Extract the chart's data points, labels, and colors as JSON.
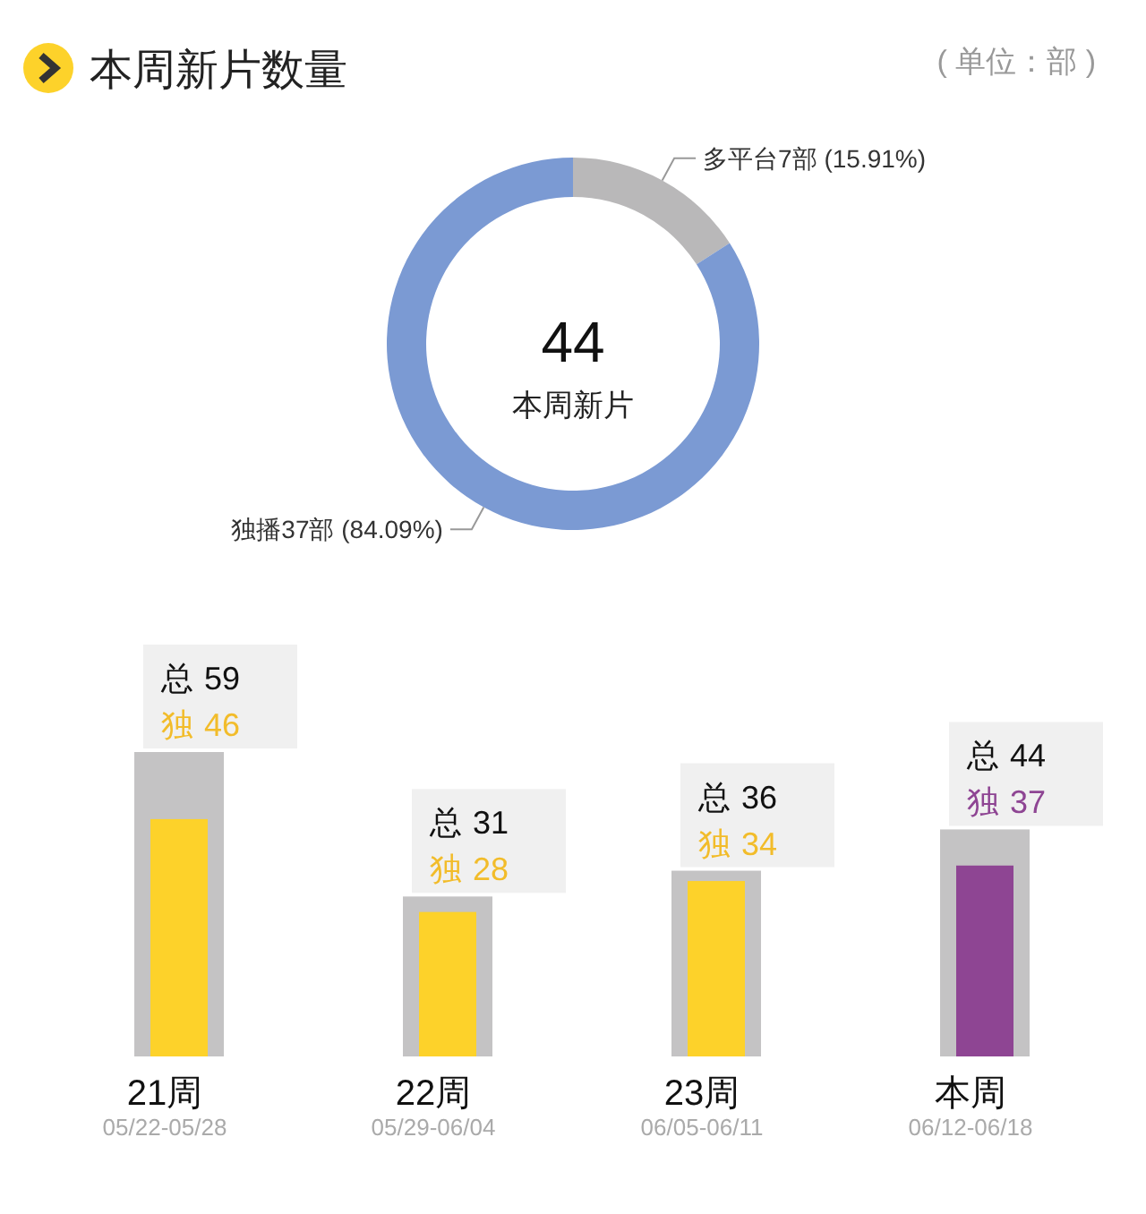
{
  "chart_data": [
    {
      "type": "donut",
      "title": "本周新片数量",
      "subtitle": "( 单位：部 )",
      "categories": [
        "多平台7部 (15.91%)",
        "独播37部 (84.09%)"
      ],
      "values": [
        7,
        37
      ],
      "colors": [
        "#b9b8b9",
        "#7b9ad3"
      ],
      "annotations": [
        "44",
        "本周新片"
      ]
    },
    {
      "type": "bar",
      "categories": [
        "21周",
        "22周",
        "23周",
        "本周"
      ],
      "series": [
        {
          "name": "总",
          "color": "#c4c3c4",
          "values": [
            59,
            31,
            36,
            44
          ],
          "value_labels": [
            "59",
            "31",
            "36",
            "44"
          ]
        },
        {
          "name": "独",
          "colors": [
            "#fdd22a",
            "#fdd22a",
            "#fdd22a",
            "#8e4593"
          ],
          "values": [
            46,
            28,
            34,
            37
          ],
          "value_labels": [
            "46",
            "28",
            "34",
            "37"
          ]
        }
      ],
      "annotations": [
        "05/22-05/28",
        "05/29-06/04",
        "06/05-06/11",
        "06/12-06/18"
      ]
    }
  ]
}
